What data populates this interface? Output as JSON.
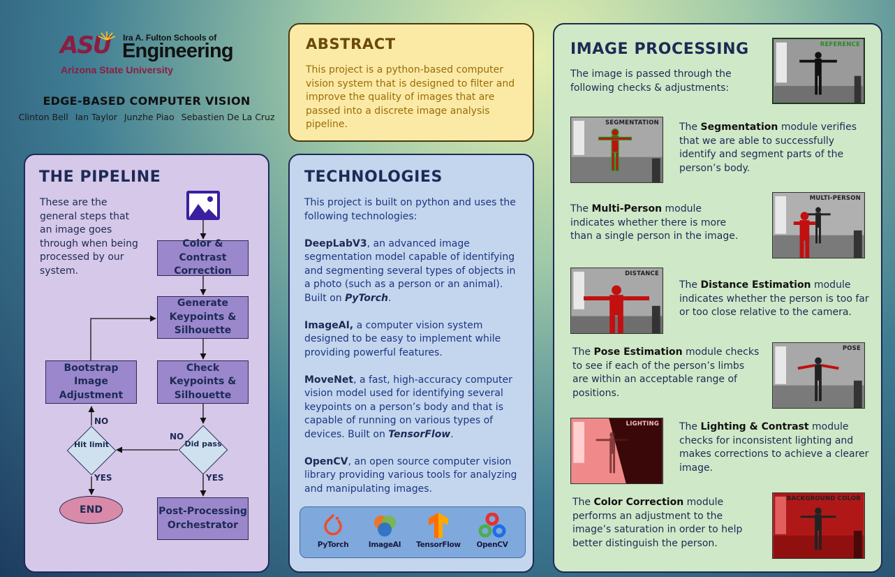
{
  "header": {
    "logo": {
      "brand": "ASU",
      "school": "Ira A. Fulton Schools of",
      "engineering": "Engineering",
      "university": "Arizona State University"
    },
    "project_title": "EDGE-BASED COMPUTER VISION",
    "authors": [
      "Clinton Bell",
      "Ian Taylor",
      "Junzhe Piao",
      "Sebastien De La Cruz"
    ]
  },
  "abstract": {
    "title": "ABSTRACT",
    "text": "This project is a python-based computer vision system that is designed to filter and improve the quality of images that are passed into a discrete image analysis pipeline."
  },
  "pipeline": {
    "title": "THE PIPELINE",
    "intro": "These are the general steps that an image goes through when being processed by our system.",
    "icon": "image-icon",
    "steps": {
      "color_contrast": "Color & Contrast Correction",
      "generate": "Generate Keypoints & Silhouette",
      "check": "Check Keypoints & Silhouette",
      "bootstrap": "Bootstrap Image Adjustment",
      "post": "Post-Processing Orchestrator",
      "did_pass": "Did pass",
      "hit_limit": "Hit limit",
      "end": "END"
    },
    "edge_labels": {
      "did_pass_no": "NO",
      "did_pass_yes": "YES",
      "hit_limit_no": "NO",
      "hit_limit_yes": "YES"
    }
  },
  "technologies": {
    "title": "TECHNOLOGIES",
    "intro": "This project is built on python and uses the following technologies:",
    "items": [
      {
        "name": "DeepLabV3",
        "desc": ", an advanced image segmentation model capable of identifying and segmenting several types of objects in a photo (such as a person or an animal). Built on ",
        "built_on": "PyTorch",
        "end": "."
      },
      {
        "name": "ImageAI,",
        "desc": " a computer vision system designed to be easy to implement while providing powerful features.",
        "built_on": "",
        "end": ""
      },
      {
        "name": "MoveNet",
        "desc": ", a fast, high-accuracy computer vision model used for identifying several keypoints on a person’s body and that is capable of running on various types of devices. Built on ",
        "built_on": "TensorFlow",
        "end": "."
      },
      {
        "name": "OpenCV",
        "desc": ", an open source computer vision library providing various tools for analyzing and manipulating images.",
        "built_on": "",
        "end": ""
      }
    ],
    "logos": [
      {
        "label": "PyTorch",
        "icon": "pytorch-icon"
      },
      {
        "label": "ImageAI",
        "icon": "imageai-icon"
      },
      {
        "label": "TensorFlow",
        "icon": "tensorflow-icon"
      },
      {
        "label": "OpenCV",
        "icon": "opencv-icon"
      }
    ]
  },
  "image_processing": {
    "title": "IMAGE PROCESSING",
    "intro": "The image is passed through the following checks & adjustments:",
    "reference_label": "REFERENCE",
    "modules": [
      {
        "pre": "The ",
        "name": "Segmentation",
        "post": " module verifies that we are able to successfully identify and segment parts of the person’s body.",
        "thumb_label": "SEGMENTATION"
      },
      {
        "pre": "The ",
        "name": "Multi-Person",
        "post": " module indicates whether there is more than a single person in the image.",
        "thumb_label": "MULTI-PERSON"
      },
      {
        "pre": "The ",
        "name": "Distance Estimation",
        "post": " module indicates whether the person is too far or too close relative to the camera.",
        "thumb_label": "DISTANCE"
      },
      {
        "pre": "The ",
        "name": "Pose Estimation",
        "post": " module checks to see if each of the person’s limbs are within an acceptable range of positions.",
        "thumb_label": "POSE"
      },
      {
        "pre": "The ",
        "name": "Lighting & Contrast",
        "post": " module checks for inconsistent lighting and makes corrections to achieve a clearer image.",
        "thumb_label": "LIGHTING"
      },
      {
        "pre": "The ",
        "name": "Color Correction",
        "post": " module performs an adjustment to the image’s saturation in order to help better distinguish the person.",
        "thumb_label": "BACKGROUND COLOR"
      }
    ]
  }
}
